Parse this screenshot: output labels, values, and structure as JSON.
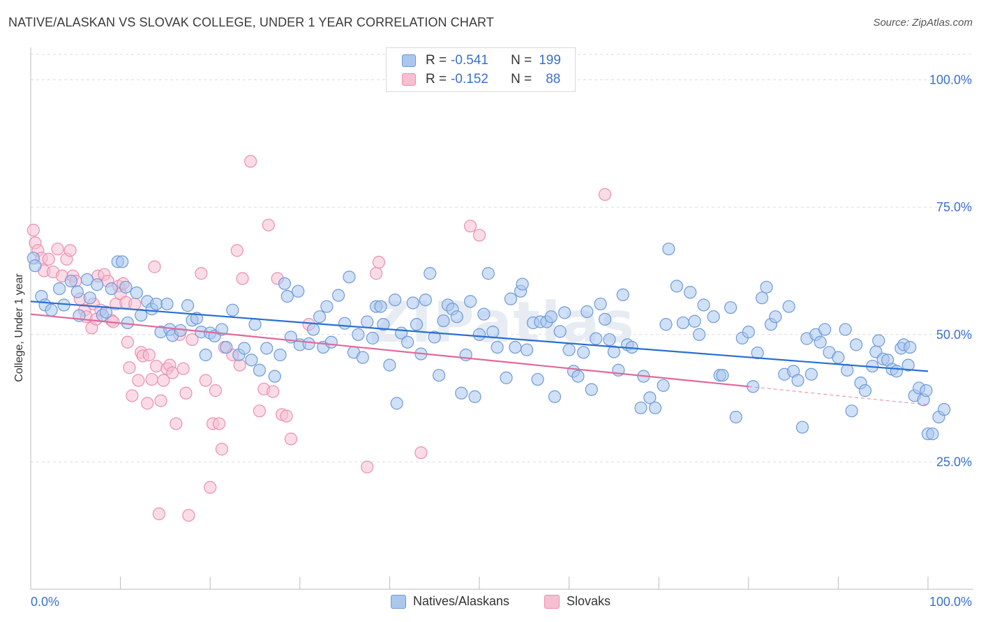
{
  "title": "NATIVE/ALASKAN VS SLOVAK COLLEGE, UNDER 1 YEAR CORRELATION CHART",
  "source": "Source: ZipAtlas.com",
  "watermark": "ZIPatlas",
  "legend": {
    "rows": [
      {
        "r_label": "R =",
        "r_value": "-0.541",
        "n_label": "N =",
        "n_value": "199"
      },
      {
        "r_label": "R =",
        "r_value": "-0.152",
        "n_label": "N =",
        "n_value": "88"
      }
    ]
  },
  "colors": {
    "blue_fill": "#aac7ee",
    "blue_stroke": "#6d9ad8",
    "blue_line": "#2a6fcf",
    "pink_fill": "#f6bfd2",
    "pink_stroke": "#ea8fae",
    "pink_line": "#e0699a",
    "axis_text": "#3a6fd0"
  },
  "chart_data": {
    "type": "scatter",
    "title": "NATIVE/ALASKAN VS SLOVAK COLLEGE, UNDER 1 YEAR CORRELATION CHART",
    "xlabel": "",
    "ylabel": "College, Under 1 year",
    "xlim": [
      0,
      100
    ],
    "ylim": [
      0,
      105
    ],
    "x_tick_labels": [
      "0.0%",
      "100.0%"
    ],
    "y_tick_labels": [
      "25.0%",
      "50.0%",
      "75.0%",
      "100.0%"
    ],
    "y_ticks": [
      25,
      50,
      75,
      100
    ],
    "grid": true,
    "legend_position": "bottom-center",
    "series": [
      {
        "name": "Natives/Alaskans",
        "color": "blue",
        "trend": {
          "x": [
            0,
            100
          ],
          "y": [
            56.5,
            42.8
          ]
        },
        "points": [
          [
            0.3,
            65.0
          ],
          [
            0.5,
            63.5
          ],
          [
            1.2,
            57.5
          ],
          [
            1.6,
            55.8
          ],
          [
            2.3,
            54.8
          ],
          [
            3.2,
            59.0
          ],
          [
            3.7,
            55.8
          ],
          [
            4.5,
            60.5
          ],
          [
            5.2,
            58.4
          ],
          [
            5.4,
            53.7
          ],
          [
            6.3,
            60.8
          ],
          [
            6.6,
            57.2
          ],
          [
            7.4,
            59.8
          ],
          [
            8.0,
            53.8
          ],
          [
            8.4,
            54.4
          ],
          [
            9.0,
            59.0
          ],
          [
            9.7,
            64.3
          ],
          [
            10.2,
            64.3
          ],
          [
            10.6,
            59.3
          ],
          [
            10.8,
            52.3
          ],
          [
            11.8,
            58.2
          ],
          [
            12.3,
            53.8
          ],
          [
            13.0,
            56.5
          ],
          [
            13.5,
            55.0
          ],
          [
            14.0,
            56.0
          ],
          [
            14.5,
            50.5
          ],
          [
            15.2,
            56.0
          ],
          [
            15.5,
            51.0
          ],
          [
            15.8,
            49.8
          ],
          [
            16.7,
            50.8
          ],
          [
            17.5,
            55.7
          ],
          [
            18.0,
            52.8
          ],
          [
            18.5,
            53.2
          ],
          [
            19.0,
            50.5
          ],
          [
            19.5,
            46.0
          ],
          [
            20.0,
            50.3
          ],
          [
            20.5,
            49.7
          ],
          [
            21.3,
            51.0
          ],
          [
            21.8,
            47.5
          ],
          [
            22.5,
            54.8
          ],
          [
            23.2,
            46.0
          ],
          [
            23.8,
            47.3
          ],
          [
            24.6,
            45.0
          ],
          [
            25.0,
            52.0
          ],
          [
            25.5,
            43.0
          ],
          [
            26.3,
            47.3
          ],
          [
            27.2,
            41.8
          ],
          [
            27.8,
            46.0
          ],
          [
            28.3,
            60.0
          ],
          [
            28.6,
            57.5
          ],
          [
            29.0,
            49.5
          ],
          [
            29.8,
            58.5
          ],
          [
            30.0,
            48.0
          ],
          [
            31.0,
            48.2
          ],
          [
            31.5,
            51.0
          ],
          [
            32.2,
            53.5
          ],
          [
            32.6,
            47.5
          ],
          [
            33.0,
            55.5
          ],
          [
            33.5,
            48.5
          ],
          [
            34.3,
            57.7
          ],
          [
            35.0,
            52.2
          ],
          [
            35.5,
            61.3
          ],
          [
            36.0,
            46.5
          ],
          [
            36.5,
            50.0
          ],
          [
            37.0,
            45.5
          ],
          [
            37.5,
            52.5
          ],
          [
            38.1,
            49.3
          ],
          [
            38.5,
            55.5
          ],
          [
            39.0,
            55.5
          ],
          [
            39.3,
            52.0
          ],
          [
            40.0,
            44.0
          ],
          [
            40.6,
            56.8
          ],
          [
            40.8,
            36.5
          ],
          [
            41.3,
            50.3
          ],
          [
            42.0,
            48.5
          ],
          [
            42.6,
            56.2
          ],
          [
            43.0,
            52.0
          ],
          [
            43.5,
            46.2
          ],
          [
            44.0,
            56.8
          ],
          [
            44.5,
            62.0
          ],
          [
            45.0,
            49.5
          ],
          [
            45.5,
            42.0
          ],
          [
            46.0,
            52.7
          ],
          [
            46.5,
            55.8
          ],
          [
            47.0,
            55.0
          ],
          [
            47.5,
            53.5
          ],
          [
            48.0,
            38.5
          ],
          [
            48.5,
            46.0
          ],
          [
            49.0,
            56.5
          ],
          [
            49.5,
            37.8
          ],
          [
            50.0,
            50.0
          ],
          [
            50.5,
            54.0
          ],
          [
            51.0,
            62.0
          ],
          [
            51.5,
            50.5
          ],
          [
            52.0,
            47.5
          ],
          [
            53.0,
            41.5
          ],
          [
            53.5,
            57.0
          ],
          [
            54.0,
            47.5
          ],
          [
            54.6,
            58.5
          ],
          [
            54.8,
            59.9
          ],
          [
            55.3,
            47.0
          ],
          [
            56.0,
            52.3
          ],
          [
            56.5,
            41.2
          ],
          [
            56.8,
            52.5
          ],
          [
            57.5,
            52.5
          ],
          [
            58.0,
            53.5
          ],
          [
            58.4,
            37.8
          ],
          [
            59.0,
            50.6
          ],
          [
            59.5,
            54.3
          ],
          [
            60.0,
            47.0
          ],
          [
            60.5,
            42.8
          ],
          [
            61.0,
            41.8
          ],
          [
            61.6,
            46.5
          ],
          [
            62.0,
            54.5
          ],
          [
            62.5,
            39.2
          ],
          [
            63.0,
            49.2
          ],
          [
            63.5,
            56.0
          ],
          [
            64.0,
            53.0
          ],
          [
            64.5,
            49.0
          ],
          [
            65.0,
            46.6
          ],
          [
            65.5,
            43.0
          ],
          [
            66.0,
            57.8
          ],
          [
            66.5,
            48.0
          ],
          [
            67.0,
            47.5
          ],
          [
            68.0,
            35.6
          ],
          [
            68.3,
            41.8
          ],
          [
            69.0,
            37.6
          ],
          [
            69.6,
            35.6
          ],
          [
            70.5,
            40.0
          ],
          [
            70.8,
            52.0
          ],
          [
            71.1,
            66.8
          ],
          [
            72.0,
            59.5
          ],
          [
            72.7,
            52.3
          ],
          [
            73.5,
            58.3
          ],
          [
            74.0,
            52.6
          ],
          [
            74.5,
            50.0
          ],
          [
            75.0,
            55.8
          ],
          [
            76.1,
            53.5
          ],
          [
            76.8,
            42.0
          ],
          [
            77.1,
            42.0
          ],
          [
            78.0,
            55.3
          ],
          [
            78.6,
            33.8
          ],
          [
            79.3,
            49.3
          ],
          [
            80.0,
            50.5
          ],
          [
            80.5,
            39.8
          ],
          [
            81.0,
            46.4
          ],
          [
            81.5,
            57.2
          ],
          [
            82.0,
            59.3
          ],
          [
            82.5,
            52.0
          ],
          [
            83.0,
            53.5
          ],
          [
            84.0,
            42.2
          ],
          [
            84.5,
            55.5
          ],
          [
            85.0,
            42.8
          ],
          [
            85.5,
            41.0
          ],
          [
            86.0,
            31.8
          ],
          [
            86.5,
            49.2
          ],
          [
            87.0,
            42.2
          ],
          [
            87.5,
            50.0
          ],
          [
            88.0,
            48.5
          ],
          [
            88.5,
            51.0
          ],
          [
            89.0,
            46.5
          ],
          [
            90.0,
            45.5
          ],
          [
            90.8,
            51.0
          ],
          [
            91.0,
            43.0
          ],
          [
            91.5,
            35.0
          ],
          [
            92.0,
            48.0
          ],
          [
            92.5,
            40.5
          ],
          [
            93.0,
            39.0
          ],
          [
            93.8,
            43.8
          ],
          [
            94.2,
            46.6
          ],
          [
            94.5,
            48.8
          ],
          [
            95.0,
            45.2
          ],
          [
            95.5,
            45.0
          ],
          [
            96.0,
            43.2
          ],
          [
            96.5,
            42.8
          ],
          [
            97.0,
            47.3
          ],
          [
            97.3,
            48.0
          ],
          [
            97.8,
            44.0
          ],
          [
            98.0,
            47.5
          ],
          [
            98.5,
            38.0
          ],
          [
            99.0,
            39.5
          ],
          [
            99.5,
            37.2
          ],
          [
            99.8,
            39.0
          ],
          [
            100.0,
            30.5
          ],
          [
            100.5,
            30.5
          ],
          [
            101.2,
            33.8
          ],
          [
            101.8,
            35.3
          ]
        ]
      },
      {
        "name": "Slovaks",
        "color": "pink",
        "trend": {
          "x": [
            0,
            80
          ],
          "y": [
            54.0,
            39.8
          ]
        },
        "trend_dashed": {
          "x": [
            80,
            100
          ],
          "y": [
            39.8,
            36.2
          ]
        },
        "points": [
          [
            0.3,
            70.5
          ],
          [
            0.5,
            68.0
          ],
          [
            0.8,
            66.5
          ],
          [
            1.2,
            65.0
          ],
          [
            1.5,
            62.5
          ],
          [
            2.0,
            64.8
          ],
          [
            2.5,
            62.3
          ],
          [
            3.0,
            66.8
          ],
          [
            3.5,
            61.5
          ],
          [
            4.0,
            64.8
          ],
          [
            4.4,
            66.5
          ],
          [
            4.7,
            61.5
          ],
          [
            5.0,
            60.5
          ],
          [
            5.5,
            57.0
          ],
          [
            6.0,
            54.8
          ],
          [
            6.2,
            53.5
          ],
          [
            6.8,
            51.3
          ],
          [
            7.0,
            56.0
          ],
          [
            7.3,
            53.0
          ],
          [
            7.5,
            61.5
          ],
          [
            7.8,
            54.8
          ],
          [
            8.2,
            61.8
          ],
          [
            8.6,
            60.5
          ],
          [
            9.0,
            52.8
          ],
          [
            9.2,
            52.5
          ],
          [
            9.5,
            56.0
          ],
          [
            9.8,
            59.5
          ],
          [
            10.0,
            58.0
          ],
          [
            10.3,
            60.0
          ],
          [
            10.6,
            56.3
          ],
          [
            10.8,
            48.5
          ],
          [
            11.0,
            43.5
          ],
          [
            11.3,
            38.0
          ],
          [
            11.6,
            56.0
          ],
          [
            12.0,
            41.0
          ],
          [
            12.3,
            46.5
          ],
          [
            12.5,
            45.8
          ],
          [
            13.0,
            36.5
          ],
          [
            13.2,
            46.0
          ],
          [
            13.5,
            41.2
          ],
          [
            13.8,
            63.3
          ],
          [
            14.0,
            43.8
          ],
          [
            14.3,
            14.8
          ],
          [
            14.5,
            37.0
          ],
          [
            14.8,
            41.0
          ],
          [
            15.2,
            43.3
          ],
          [
            15.5,
            44.0
          ],
          [
            15.8,
            42.5
          ],
          [
            16.2,
            32.5
          ],
          [
            16.6,
            50.0
          ],
          [
            17.0,
            43.3
          ],
          [
            17.3,
            38.5
          ],
          [
            17.6,
            14.5
          ],
          [
            18.0,
            49.0
          ],
          [
            19.0,
            62.0
          ],
          [
            19.5,
            41.0
          ],
          [
            20.0,
            20.0
          ],
          [
            20.3,
            32.5
          ],
          [
            20.6,
            39.0
          ],
          [
            21.0,
            32.5
          ],
          [
            21.3,
            27.5
          ],
          [
            21.6,
            47.5
          ],
          [
            22.5,
            46.0
          ],
          [
            23.0,
            66.5
          ],
          [
            23.3,
            44.0
          ],
          [
            23.6,
            61.0
          ],
          [
            24.5,
            84.0
          ],
          [
            25.5,
            35.0
          ],
          [
            26.0,
            39.3
          ],
          [
            26.5,
            71.5
          ],
          [
            27.0,
            38.8
          ],
          [
            27.5,
            61.0
          ],
          [
            28.0,
            34.3
          ],
          [
            28.5,
            34.0
          ],
          [
            29.0,
            29.5
          ],
          [
            31.0,
            52.0
          ],
          [
            37.5,
            24.0
          ],
          [
            38.5,
            62.0
          ],
          [
            38.8,
            64.2
          ],
          [
            43.5,
            26.8
          ],
          [
            49.0,
            71.3
          ],
          [
            50.0,
            69.5
          ],
          [
            64.0,
            77.5
          ]
        ]
      }
    ]
  },
  "bottom_legend": [
    {
      "label": "Natives/Alaskans"
    },
    {
      "label": "Slovaks"
    }
  ]
}
